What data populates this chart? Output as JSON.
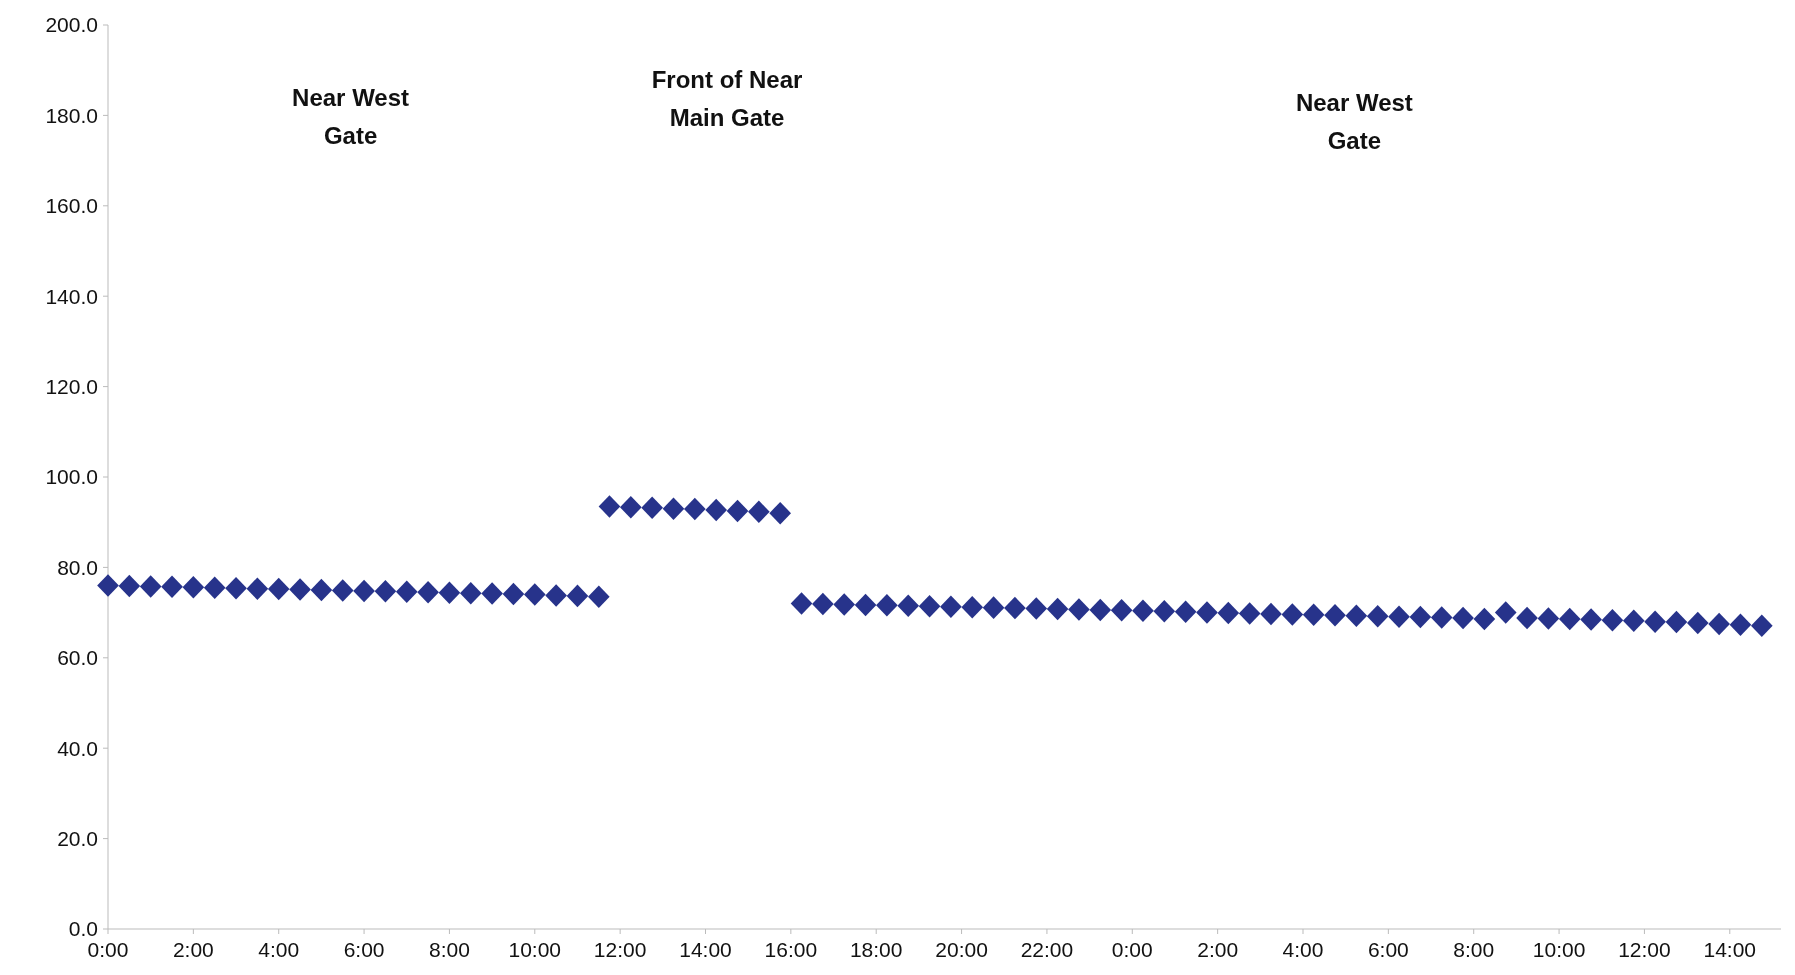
{
  "chart_data": {
    "type": "scatter",
    "marker": "diamond",
    "grid": false,
    "xlim": [
      "2000-01-01T00:00",
      "2000-01-02T15:12"
    ],
    "ylim": [
      0,
      200
    ],
    "xticks": [
      {
        "value": "2000-01-01T00:00",
        "label": "0:00"
      },
      {
        "value": "2000-01-01T02:00",
        "label": "2:00"
      },
      {
        "value": "2000-01-01T04:00",
        "label": "4:00"
      },
      {
        "value": "2000-01-01T06:00",
        "label": "6:00"
      },
      {
        "value": "2000-01-01T08:00",
        "label": "8:00"
      },
      {
        "value": "2000-01-01T10:00",
        "label": "10:00"
      },
      {
        "value": "2000-01-01T12:00",
        "label": "12:00"
      },
      {
        "value": "2000-01-01T14:00",
        "label": "14:00"
      },
      {
        "value": "2000-01-01T16:00",
        "label": "16:00"
      },
      {
        "value": "2000-01-01T18:00",
        "label": "18:00"
      },
      {
        "value": "2000-01-01T20:00",
        "label": "20:00"
      },
      {
        "value": "2000-01-01T22:00",
        "label": "22:00"
      },
      {
        "value": "2000-01-02T00:00",
        "label": "0:00"
      },
      {
        "value": "2000-01-02T02:00",
        "label": "2:00"
      },
      {
        "value": "2000-01-02T04:00",
        "label": "4:00"
      },
      {
        "value": "2000-01-02T06:00",
        "label": "6:00"
      },
      {
        "value": "2000-01-02T08:00",
        "label": "8:00"
      },
      {
        "value": "2000-01-02T10:00",
        "label": "10:00"
      },
      {
        "value": "2000-01-02T12:00",
        "label": "12:00"
      },
      {
        "value": "2000-01-02T14:00",
        "label": "14:00"
      }
    ],
    "yticks": [
      {
        "value": 0,
        "label": "0.0"
      },
      {
        "value": 20,
        "label": "20.0"
      },
      {
        "value": 40,
        "label": "40.0"
      },
      {
        "value": 60,
        "label": "60.0"
      },
      {
        "value": 80,
        "label": "80.0"
      },
      {
        "value": 100,
        "label": "100.0"
      },
      {
        "value": 120,
        "label": "120.0"
      },
      {
        "value": 140,
        "label": "140.0"
      },
      {
        "value": 160,
        "label": "160.0"
      },
      {
        "value": 180,
        "label": "180.0"
      },
      {
        "value": 200,
        "label": "200.0"
      }
    ],
    "annotations": [
      "Near West\nGate",
      "Front of Near\nMain Gate",
      "Near West\nGate"
    ],
    "series": [
      {
        "color": "#27338b",
        "x": [
          "2000-01-01T00:00",
          "2000-01-01T00:30",
          "2000-01-01T01:00",
          "2000-01-01T01:30",
          "2000-01-01T02:00",
          "2000-01-01T02:30",
          "2000-01-01T03:00",
          "2000-01-01T03:30",
          "2000-01-01T04:00",
          "2000-01-01T04:30",
          "2000-01-01T05:00",
          "2000-01-01T05:30",
          "2000-01-01T06:00",
          "2000-01-01T06:30",
          "2000-01-01T07:00",
          "2000-01-01T07:30",
          "2000-01-01T08:00",
          "2000-01-01T08:30",
          "2000-01-01T09:00",
          "2000-01-01T09:30",
          "2000-01-01T10:00",
          "2000-01-01T10:30",
          "2000-01-01T11:00",
          "2000-01-01T11:30",
          "2000-01-01T11:45",
          "2000-01-01T12:15",
          "2000-01-01T12:45",
          "2000-01-01T13:15",
          "2000-01-01T13:45",
          "2000-01-01T14:15",
          "2000-01-01T14:45",
          "2000-01-01T15:15",
          "2000-01-01T15:45",
          "2000-01-01T16:15",
          "2000-01-01T16:45",
          "2000-01-01T17:15",
          "2000-01-01T17:45",
          "2000-01-01T18:15",
          "2000-01-01T18:45",
          "2000-01-01T19:15",
          "2000-01-01T19:45",
          "2000-01-01T20:15",
          "2000-01-01T20:45",
          "2000-01-01T21:15",
          "2000-01-01T21:45",
          "2000-01-01T22:15",
          "2000-01-01T22:45",
          "2000-01-01T23:15",
          "2000-01-01T23:45",
          "2000-01-02T00:15",
          "2000-01-02T00:45",
          "2000-01-02T01:15",
          "2000-01-02T01:45",
          "2000-01-02T02:15",
          "2000-01-02T02:45",
          "2000-01-02T03:15",
          "2000-01-02T03:45",
          "2000-01-02T04:15",
          "2000-01-02T04:45",
          "2000-01-02T05:15",
          "2000-01-02T05:45",
          "2000-01-02T06:15",
          "2000-01-02T06:45",
          "2000-01-02T07:15",
          "2000-01-02T07:45",
          "2000-01-02T08:15",
          "2000-01-02T08:45",
          "2000-01-02T09:15",
          "2000-01-02T09:45",
          "2000-01-02T10:15",
          "2000-01-02T10:45",
          "2000-01-02T11:15",
          "2000-01-02T11:45",
          "2000-01-02T12:15",
          "2000-01-02T12:45",
          "2000-01-02T13:15",
          "2000-01-02T13:45",
          "2000-01-02T14:15",
          "2000-01-02T14:45"
        ],
        "values": [
          76.0,
          75.9,
          75.8,
          75.7,
          75.6,
          75.5,
          75.4,
          75.3,
          75.2,
          75.1,
          75.0,
          74.9,
          74.8,
          74.7,
          74.6,
          74.5,
          74.4,
          74.3,
          74.2,
          74.1,
          74.0,
          73.8,
          73.7,
          73.5,
          93.5,
          93.3,
          93.2,
          93.0,
          92.9,
          92.7,
          92.5,
          92.3,
          92.0,
          72.0,
          71.9,
          71.8,
          71.7,
          71.6,
          71.5,
          71.4,
          71.3,
          71.2,
          71.1,
          71.0,
          70.9,
          70.8,
          70.7,
          70.6,
          70.5,
          70.4,
          70.3,
          70.2,
          70.0,
          69.9,
          69.8,
          69.7,
          69.6,
          69.5,
          69.4,
          69.3,
          69.2,
          69.1,
          69.0,
          68.9,
          68.8,
          68.6,
          70.0,
          68.8,
          68.7,
          68.6,
          68.5,
          68.3,
          68.2,
          68.0,
          67.9,
          67.7,
          67.5,
          67.3,
          67.1
        ]
      }
    ]
  }
}
